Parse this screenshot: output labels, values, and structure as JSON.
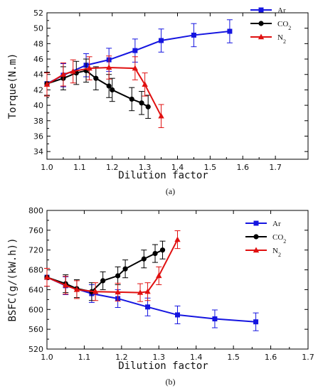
{
  "chart_data": [
    {
      "type": "line",
      "caption": "(a)",
      "xlabel": "Dilution factor",
      "ylabel": "Torque(N.m)",
      "xlim": [
        1.0,
        1.8
      ],
      "ylim": [
        33,
        52
      ],
      "xticks": [
        "1.0",
        "1.1",
        "1.2",
        "1.3",
        "1.4",
        "1.5",
        "1.6",
        "1.7"
      ],
      "yticks": [
        "34",
        "36",
        "38",
        "40",
        "42",
        "44",
        "46",
        "48",
        "50",
        "52"
      ],
      "grid": false,
      "legend_position": "top-right",
      "series": [
        {
          "name": "Ar",
          "name_main": "Ar",
          "name_sub": "",
          "color": "#1515e0",
          "marker": "square",
          "x": [
            1.0,
            1.05,
            1.12,
            1.19,
            1.27,
            1.35,
            1.45,
            1.56
          ],
          "y": [
            42.8,
            43.9,
            45.2,
            45.9,
            47.1,
            48.4,
            49.1,
            49.6
          ],
          "err": [
            1.5,
            1.5,
            1.5,
            1.5,
            1.5,
            1.5,
            1.5,
            1.5
          ]
        },
        {
          "name": "CO2",
          "name_main": "CO",
          "name_sub": "2",
          "color": "#000000",
          "marker": "circle",
          "x": [
            1.0,
            1.05,
            1.09,
            1.12,
            1.15,
            1.19,
            1.2,
            1.26,
            1.29,
            1.31
          ],
          "y": [
            42.8,
            43.5,
            44.2,
            44.5,
            43.5,
            42.5,
            42.0,
            40.8,
            40.3,
            39.8
          ],
          "err": [
            1.5,
            1.5,
            1.5,
            1.5,
            1.5,
            1.5,
            1.5,
            1.5,
            1.5,
            1.5
          ]
        },
        {
          "name": "N2",
          "name_main": "N",
          "name_sub": "2",
          "color": "#e01010",
          "marker": "triangle",
          "x": [
            1.0,
            1.05,
            1.08,
            1.13,
            1.19,
            1.27,
            1.3,
            1.35
          ],
          "y": [
            42.7,
            44.0,
            44.4,
            44.8,
            44.9,
            44.8,
            42.7,
            38.6
          ],
          "err": [
            1.5,
            1.5,
            1.5,
            1.5,
            1.5,
            1.5,
            1.5,
            1.5
          ]
        }
      ]
    },
    {
      "type": "line",
      "caption": "(b)",
      "xlabel": "Dilution factor",
      "ylabel": "BSFC(g/(kW.h))",
      "xlim": [
        1.0,
        1.7
      ],
      "ylim": [
        520,
        800
      ],
      "xticks": [
        "1.0",
        "1.1",
        "1.2",
        "1.3",
        "1.4",
        "1.5",
        "1.6",
        "1.7"
      ],
      "yticks": [
        "520",
        "560",
        "600",
        "640",
        "680",
        "720",
        "760",
        "800"
      ],
      "grid": false,
      "legend_position": "top-right",
      "series": [
        {
          "name": "Ar",
          "name_main": "Ar",
          "name_sub": "",
          "color": "#1515e0",
          "marker": "square",
          "x": [
            1.0,
            1.05,
            1.12,
            1.19,
            1.27,
            1.35,
            1.45,
            1.56
          ],
          "y": [
            665,
            648,
            632,
            622,
            605,
            589,
            581,
            575
          ],
          "err": [
            18,
            18,
            18,
            18,
            18,
            18,
            18,
            18
          ]
        },
        {
          "name": "CO2",
          "name_main": "CO",
          "name_sub": "2",
          "color": "#000000",
          "marker": "circle",
          "x": [
            1.0,
            1.05,
            1.08,
            1.12,
            1.15,
            1.19,
            1.21,
            1.26,
            1.29,
            1.31
          ],
          "y": [
            665,
            652,
            642,
            636,
            658,
            668,
            682,
            702,
            713,
            720
          ],
          "err": [
            18,
            18,
            18,
            18,
            18,
            18,
            18,
            18,
            18,
            18
          ]
        },
        {
          "name": "N2",
          "name_main": "N",
          "name_sub": "2",
          "color": "#e01010",
          "marker": "triangle",
          "x": [
            1.0,
            1.05,
            1.08,
            1.13,
            1.19,
            1.25,
            1.27,
            1.3,
            1.35
          ],
          "y": [
            665,
            649,
            640,
            636,
            635,
            634,
            636,
            668,
            741
          ],
          "err": [
            18,
            18,
            18,
            18,
            18,
            18,
            18,
            18,
            18
          ]
        }
      ]
    }
  ]
}
